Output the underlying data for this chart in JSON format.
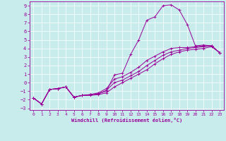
{
  "xlabel": "Windchill (Refroidissement éolien,°C)",
  "bg_color": "#c8ecec",
  "line_color": "#990099",
  "xlim": [
    -0.5,
    23.5
  ],
  "ylim": [
    -3.2,
    9.5
  ],
  "xticks": [
    0,
    1,
    2,
    3,
    4,
    5,
    6,
    7,
    8,
    9,
    10,
    11,
    12,
    13,
    14,
    15,
    16,
    17,
    18,
    19,
    20,
    21,
    22,
    23
  ],
  "yticks": [
    -3,
    -2,
    -1,
    0,
    1,
    2,
    3,
    4,
    5,
    6,
    7,
    8,
    9
  ],
  "curve1_x": [
    0,
    1,
    2,
    3,
    4,
    5,
    6,
    7,
    8,
    9,
    10,
    11,
    12,
    13,
    14,
    15,
    16,
    17,
    18,
    19,
    20,
    21,
    22,
    23
  ],
  "curve1_y": [
    -1.8,
    -2.5,
    -0.8,
    -0.7,
    -0.5,
    -1.7,
    -1.5,
    -1.4,
    -1.3,
    -1.0,
    0.9,
    1.1,
    3.3,
    5.0,
    7.3,
    7.7,
    9.0,
    9.1,
    8.5,
    6.8,
    4.3,
    4.4,
    4.3,
    3.5
  ],
  "curve2_x": [
    0,
    1,
    2,
    3,
    4,
    5,
    6,
    7,
    8,
    9,
    10,
    11,
    12,
    13,
    14,
    15,
    16,
    17,
    18,
    19,
    20,
    21,
    22,
    23
  ],
  "curve2_y": [
    -1.8,
    -2.5,
    -0.8,
    -0.7,
    -0.5,
    -1.7,
    -1.5,
    -1.4,
    -1.3,
    -0.9,
    0.0,
    0.3,
    0.8,
    1.3,
    2.0,
    2.6,
    3.2,
    3.6,
    3.8,
    4.0,
    4.1,
    4.2,
    4.3,
    3.5
  ],
  "curve3_x": [
    0,
    1,
    2,
    3,
    4,
    5,
    6,
    7,
    8,
    9,
    10,
    11,
    12,
    13,
    14,
    15,
    16,
    17,
    18,
    19,
    20,
    21,
    22,
    23
  ],
  "curve3_y": [
    -1.8,
    -2.5,
    -0.8,
    -0.7,
    -0.5,
    -1.7,
    -1.5,
    -1.4,
    -1.2,
    -0.7,
    0.4,
    0.7,
    1.2,
    1.8,
    2.6,
    3.1,
    3.6,
    4.0,
    4.1,
    4.1,
    4.2,
    4.3,
    4.3,
    3.5
  ],
  "curve4_x": [
    0,
    1,
    2,
    3,
    4,
    5,
    6,
    7,
    8,
    9,
    10,
    11,
    12,
    13,
    14,
    15,
    16,
    17,
    18,
    19,
    20,
    21,
    22,
    23
  ],
  "curve4_y": [
    -1.8,
    -2.5,
    -0.8,
    -0.7,
    -0.5,
    -1.7,
    -1.5,
    -1.5,
    -1.4,
    -1.2,
    -0.5,
    0.0,
    0.5,
    1.0,
    1.5,
    2.2,
    2.8,
    3.3,
    3.6,
    3.8,
    3.9,
    4.0,
    4.2,
    3.5
  ]
}
